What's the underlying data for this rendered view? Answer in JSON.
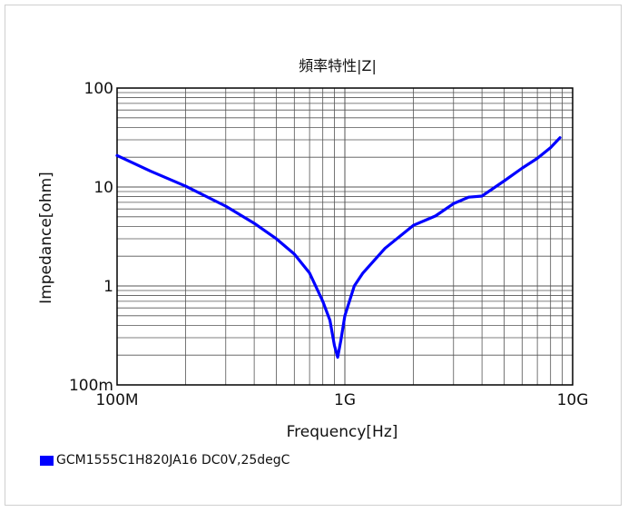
{
  "chart_data": {
    "type": "line",
    "title": "頻率特性|Z|",
    "xlabel": "Frequency[Hz]",
    "ylabel": "Impedance[ohm]",
    "x_scale": "log",
    "y_scale": "log",
    "xlim": [
      "100M",
      "10G"
    ],
    "ylim": [
      "100m",
      "100"
    ],
    "x_ticks": [
      {
        "value": 100000000,
        "label": "100M"
      },
      {
        "value": 1000000000,
        "label": "1G"
      },
      {
        "value": 10000000000,
        "label": "10G"
      }
    ],
    "y_ticks": [
      {
        "value": 0.1,
        "label": "100m"
      },
      {
        "value": 1,
        "label": "1"
      },
      {
        "value": 10,
        "label": "10"
      },
      {
        "value": 100,
        "label": "100"
      }
    ],
    "grid": true,
    "legend_position": "bottom-left",
    "series": [
      {
        "name": "GCM1555C1H820JA16 DC0V,25degC",
        "color": "#0000ff",
        "points": [
          {
            "x": 100000000,
            "y": 20.8
          },
          {
            "x": 140000000,
            "y": 14.5
          },
          {
            "x": 200000000,
            "y": 10.2
          },
          {
            "x": 300000000,
            "y": 6.4
          },
          {
            "x": 400000000,
            "y": 4.3
          },
          {
            "x": 500000000,
            "y": 3.0
          },
          {
            "x": 600000000,
            "y": 2.1
          },
          {
            "x": 700000000,
            "y": 1.35
          },
          {
            "x": 800000000,
            "y": 0.7
          },
          {
            "x": 860000000,
            "y": 0.45
          },
          {
            "x": 900000000,
            "y": 0.25
          },
          {
            "x": 930000000,
            "y": 0.19
          },
          {
            "x": 960000000,
            "y": 0.28
          },
          {
            "x": 1000000000,
            "y": 0.5
          },
          {
            "x": 1100000000,
            "y": 1.0
          },
          {
            "x": 1200000000,
            "y": 1.35
          },
          {
            "x": 1500000000,
            "y": 2.4
          },
          {
            "x": 2000000000,
            "y": 4.1
          },
          {
            "x": 2500000000,
            "y": 5.1
          },
          {
            "x": 3000000000,
            "y": 6.8
          },
          {
            "x": 3500000000,
            "y": 7.9
          },
          {
            "x": 4000000000,
            "y": 8.1
          },
          {
            "x": 5000000000,
            "y": 11.5
          },
          {
            "x": 6000000000,
            "y": 15.5
          },
          {
            "x": 7000000000,
            "y": 19.5
          },
          {
            "x": 8000000000,
            "y": 25.0
          },
          {
            "x": 8800000000,
            "y": 31.5
          }
        ]
      }
    ]
  }
}
